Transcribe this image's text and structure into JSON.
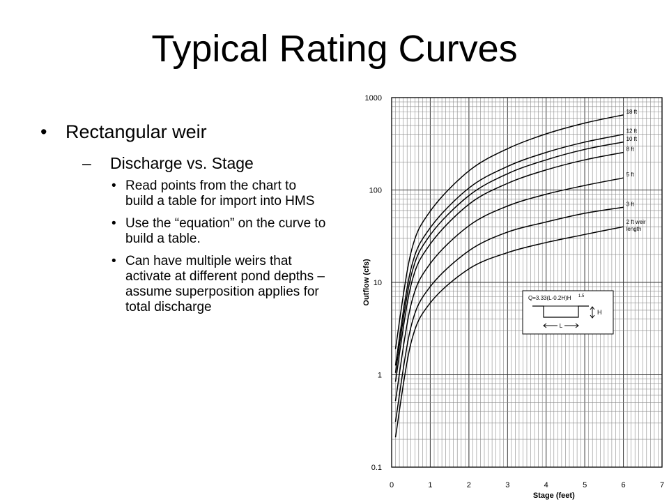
{
  "slide": {
    "title": "Typical Rating Curves",
    "bullet_l1": "Rectangular weir",
    "bullet_l2": "Discharge vs. Stage",
    "bullets_l3": [
      "Read points from the chart to build a table for import into HMS",
      "Use the “equation” on the curve to build a table.",
      "Can have multiple weirs that activate at different pond depths – assume superposition applies for total discharge"
    ]
  },
  "chart_data": {
    "type": "line",
    "xlabel": "Stage (feet)",
    "ylabel": "Outflow (cfs)",
    "xlim": [
      0,
      7
    ],
    "ylim": [
      0.1,
      1000
    ],
    "yscale": "log",
    "grid": true,
    "x_ticks": [
      "0",
      "1",
      "2",
      "3",
      "4",
      "5",
      "6",
      "7"
    ],
    "y_ticks": [
      "0.1",
      "1",
      "10",
      "100",
      "1000"
    ],
    "series": [
      {
        "name": "18 ft",
        "x": [
          0.1,
          0.5,
          1,
          2,
          3,
          4,
          5,
          6
        ],
        "y": [
          1.9,
          21,
          59,
          161,
          280,
          405,
          530,
          650
        ]
      },
      {
        "name": "12 ft",
        "x": [
          0.1,
          0.5,
          1,
          2,
          3,
          4,
          5,
          6
        ],
        "y": [
          1.26,
          14,
          39,
          105,
          180,
          255,
          330,
          400
        ]
      },
      {
        "name": "10 ft",
        "x": [
          0.1,
          0.5,
          1,
          2,
          3,
          4,
          5,
          6
        ],
        "y": [
          1.05,
          11.6,
          32.6,
          87,
          150,
          212,
          275,
          330
        ]
      },
      {
        "name": "8 ft",
        "x": [
          0.1,
          0.5,
          1,
          2,
          3,
          4,
          5,
          6
        ],
        "y": [
          0.84,
          9.3,
          26,
          70,
          118,
          165,
          212,
          255
        ]
      },
      {
        "name": "5 ft",
        "x": [
          0.1,
          0.5,
          1,
          2,
          3,
          4,
          5,
          6
        ],
        "y": [
          0.52,
          5.7,
          16,
          41,
          67,
          90,
          112,
          135
        ]
      },
      {
        "name": "3 ft",
        "x": [
          0.1,
          0.5,
          1,
          2,
          3,
          4,
          5,
          6
        ],
        "y": [
          0.31,
          3.3,
          9,
          22,
          35,
          45,
          56,
          65
        ]
      },
      {
        "name": "2 ft weir length",
        "x": [
          0.1,
          0.5,
          1,
          2,
          3,
          4,
          5,
          6
        ],
        "y": [
          0.21,
          2.2,
          6,
          14,
          21,
          27,
          33,
          40
        ]
      }
    ],
    "annotation": {
      "equation_left": "Q=3.33(L-0.2H)H",
      "exponent": "1.5",
      "h_label": "H",
      "l_label": "L"
    }
  }
}
